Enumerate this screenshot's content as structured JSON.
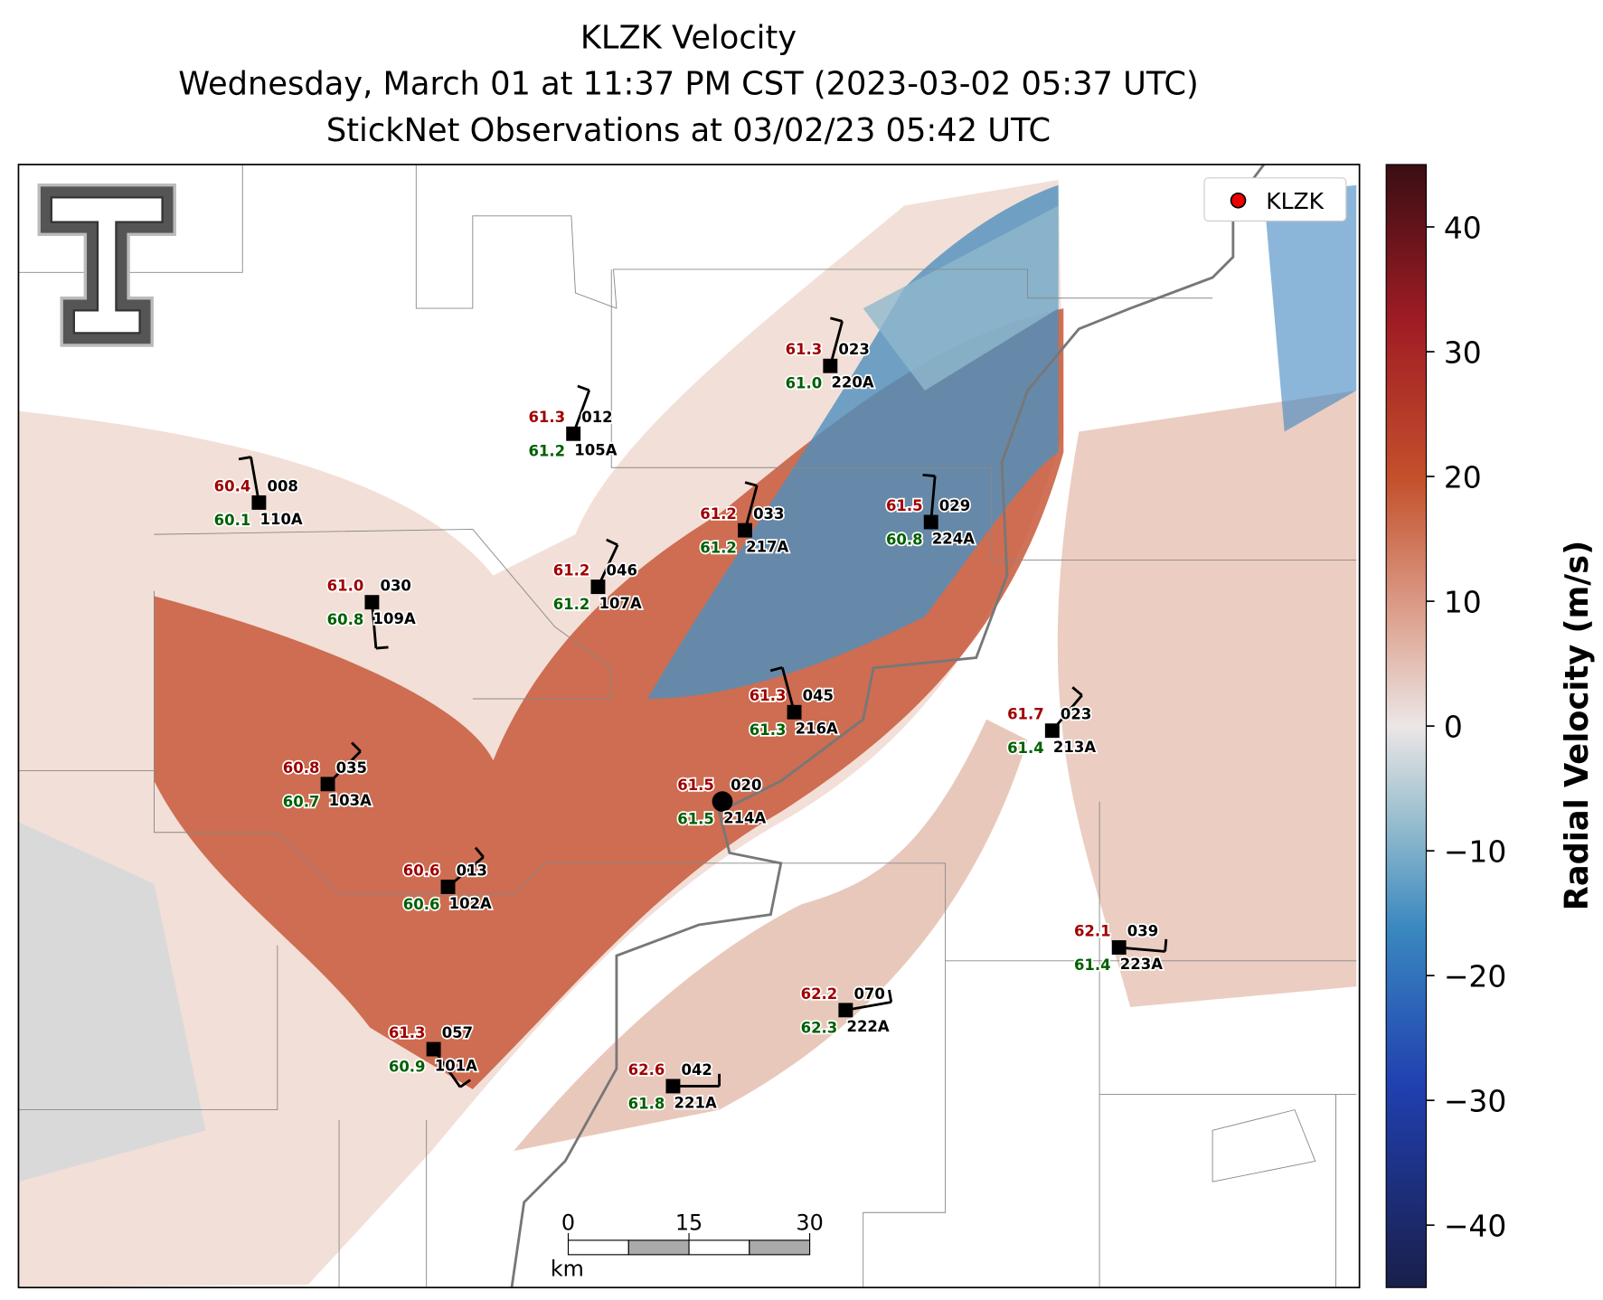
{
  "title": [
    "KLZK Velocity",
    "Wednesday, March 01 at 11:37 PM CST (2023-03-02 05:37 UTC)",
    "StickNet Observations at 03/02/23 05:42 UTC"
  ],
  "legend": "KLZK",
  "colorbar": {
    "label": "Radial Velocity (m/s)",
    "clim": [
      -45,
      45
    ],
    "ticks": [
      40,
      30,
      20,
      10,
      0,
      {
        "value": -10,
        "label": "−10"
      },
      {
        "value": -20,
        "label": "−20"
      },
      {
        "value": -30,
        "label": "−30"
      },
      {
        "value": -40,
        "label": "−40"
      }
    ]
  },
  "scale_bar": {
    "ticks": [
      0,
      15,
      30
    ],
    "unit": "km"
  },
  "stations": [
    {
      "temp": "61.3",
      "dew": "61.0",
      "wind": "023",
      "id": "220A"
    },
    {
      "temp": "61.3",
      "dew": "61.2",
      "wind": "012",
      "id": "105A"
    },
    {
      "temp": "60.4",
      "dew": "60.1",
      "wind": "008",
      "id": "110A"
    },
    {
      "temp": "61.2",
      "dew": "61.2",
      "wind": "033",
      "id": "217A"
    },
    {
      "temp": "61.5",
      "dew": "60.8",
      "wind": "029",
      "id": "224A"
    },
    {
      "temp": "61.0",
      "dew": "60.8",
      "wind": "030",
      "id": "109A"
    },
    {
      "temp": "61.2",
      "dew": "61.2",
      "wind": "046",
      "id": "107A"
    },
    {
      "temp": "61.3",
      "dew": "61.3",
      "wind": "045",
      "id": "216A"
    },
    {
      "temp": "61.7",
      "dew": "61.4",
      "wind": "023",
      "id": "213A"
    },
    {
      "temp": "60.8",
      "dew": "60.7",
      "wind": "035",
      "id": "103A"
    },
    {
      "temp": "61.5",
      "dew": "61.5",
      "wind": "020",
      "id": "214A"
    },
    {
      "temp": "60.6",
      "dew": "60.6",
      "wind": "013",
      "id": "102A"
    },
    {
      "temp": "62.1",
      "dew": "61.4",
      "wind": "039",
      "id": "223A"
    },
    {
      "temp": "62.2",
      "dew": "62.3",
      "wind": "070",
      "id": "222A"
    },
    {
      "temp": "61.3",
      "dew": "60.9",
      "wind": "057",
      "id": "101A"
    },
    {
      "temp": "62.6",
      "dew": "61.8",
      "wind": "042",
      "id": "221A"
    }
  ]
}
